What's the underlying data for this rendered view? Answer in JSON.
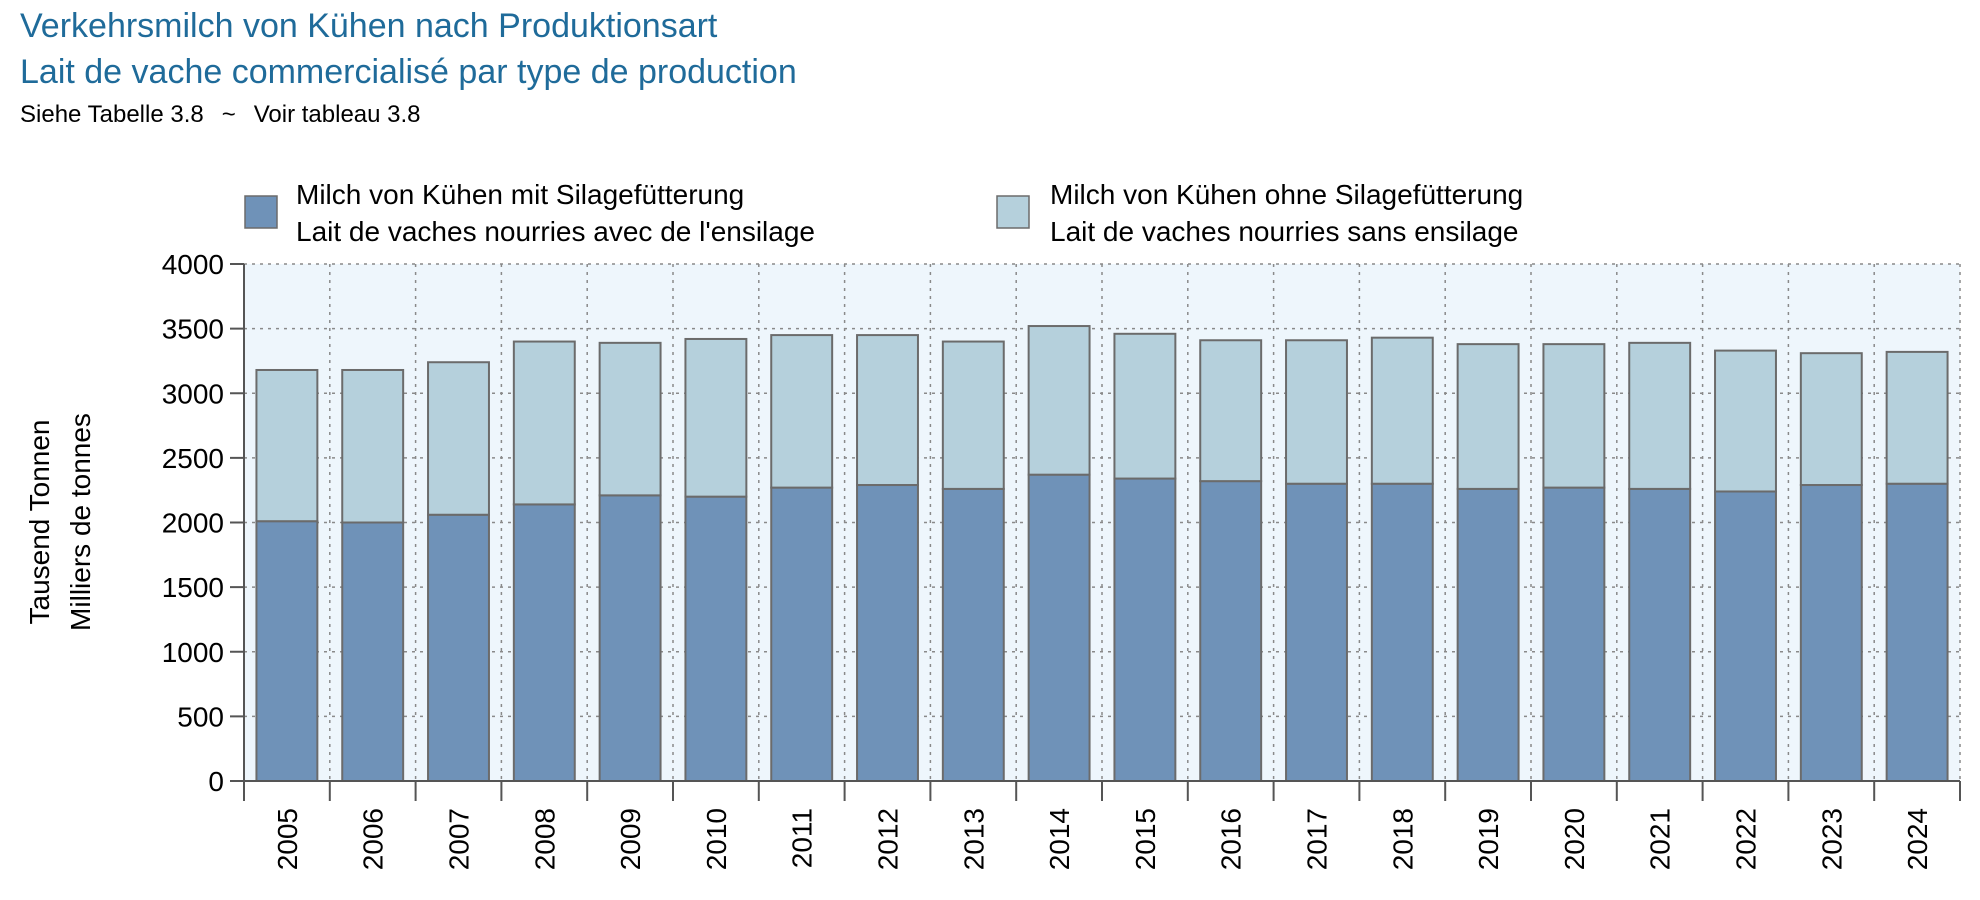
{
  "header": {
    "title_de": "Verkehrsmilch von Kühen nach Produktionsart",
    "title_fr": "Lait de vache commercialisé par type de production",
    "subtitle_de": "Siehe Tabelle 3.8",
    "subtitle_sep": "~",
    "subtitle_fr": "Voir tableau 3.8"
  },
  "colors": {
    "title": "#1f6b9a",
    "with_silage": "#6f92b8",
    "without_silage": "#b5d0dc",
    "plot_background": "#eef6fc",
    "bar_outline": "#6b6b6b"
  },
  "chart_data": {
    "type": "bar",
    "stacked": true,
    "ylabel_de": "Tausend Tonnen",
    "ylabel_fr": "Milliers de tonnes",
    "ylim": [
      0,
      4000
    ],
    "yticks": [
      0,
      500,
      1000,
      1500,
      2000,
      2500,
      3000,
      3500,
      4000
    ],
    "grid": true,
    "legend_position": "top",
    "categories": [
      "2005",
      "2006",
      "2007",
      "2008",
      "2009",
      "2010",
      "2011",
      "2012",
      "2013",
      "2014",
      "2015",
      "2016",
      "2017",
      "2018",
      "2019",
      "2020",
      "2021",
      "2022",
      "2023",
      "2024"
    ],
    "series": [
      {
        "name_de": "Milch von Kühen mit Silagefütterung",
        "name_fr": "Lait de vaches nourries avec de l'ensilage",
        "values": [
          2010,
          2000,
          2060,
          2140,
          2210,
          2200,
          2270,
          2290,
          2260,
          2370,
          2340,
          2320,
          2300,
          2300,
          2260,
          2270,
          2260,
          2240,
          2290,
          2300
        ]
      },
      {
        "name_de": "Milch von Kühen ohne Silagefütterung",
        "name_fr": "Lait de vaches nourries sans ensilage",
        "values": [
          1170,
          1180,
          1180,
          1260,
          1180,
          1220,
          1180,
          1160,
          1140,
          1150,
          1120,
          1090,
          1110,
          1130,
          1120,
          1110,
          1130,
          1090,
          1020,
          1020
        ]
      }
    ]
  }
}
